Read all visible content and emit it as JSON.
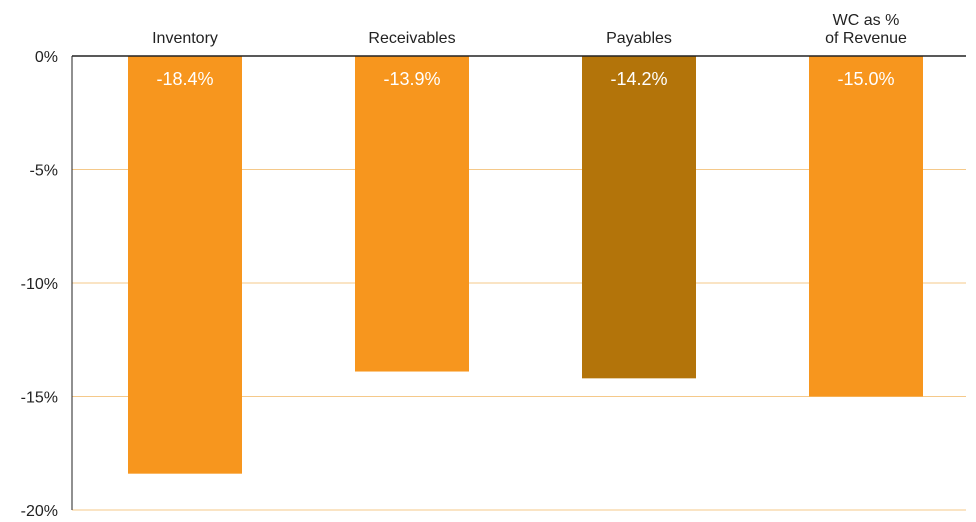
{
  "chart_data": {
    "type": "bar",
    "categories": [
      "Inventory",
      "Receivables",
      "Payables",
      "WC as %\nof Revenue"
    ],
    "values": [
      -18.4,
      -13.9,
      -14.2,
      -15.0
    ],
    "value_labels": [
      "-18.4%",
      "-13.9%",
      "-14.2%",
      "-15.0%"
    ],
    "ylim": [
      -20,
      0
    ],
    "yticks": [
      0,
      -5,
      -10,
      -15,
      -20
    ],
    "ytick_labels": [
      "0%",
      "-5%",
      "-10%",
      "-15%",
      "-20%"
    ],
    "grid": true,
    "category_labels_position": "top",
    "title": "",
    "xlabel": "",
    "ylabel": "",
    "colors": {
      "bars": [
        "#F7961E",
        "#F7961E",
        "#B3740A",
        "#F7961E"
      ],
      "grid": "#F5C98A",
      "axis": "#222222",
      "value_label": "#ffffff"
    }
  }
}
